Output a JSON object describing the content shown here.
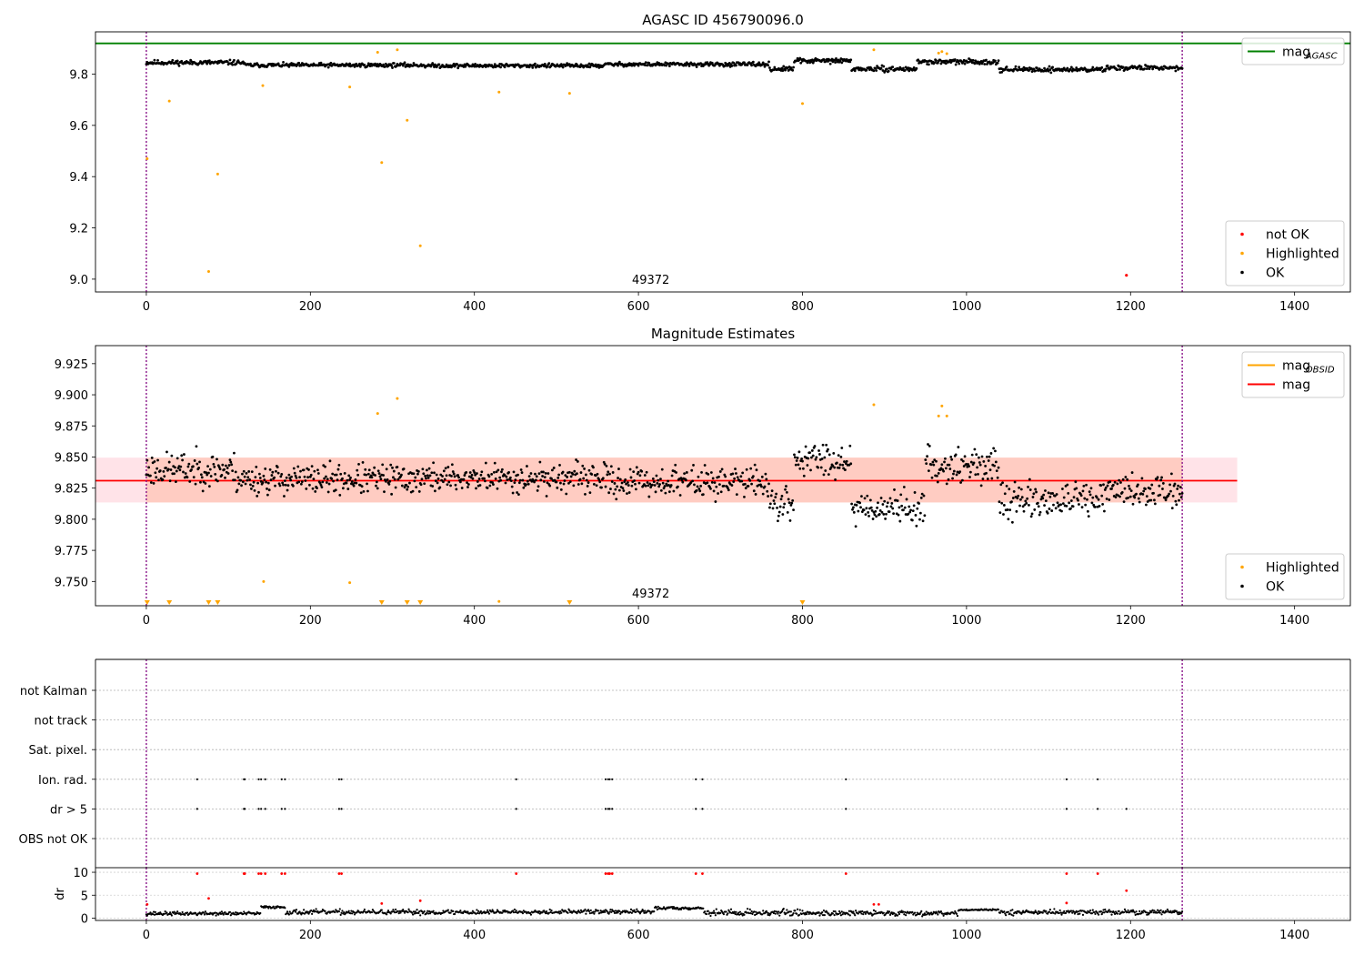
{
  "colors": {
    "ok": "#000000",
    "highlighted": "#ffa500",
    "not_ok": "#ff0000",
    "mag_agasc": "#008000",
    "mag_obsid": "#ffa500",
    "mag": "#ff0000",
    "band_outer": "#ffc0cb",
    "band_inner": "#ffa07a",
    "obs_line": "#800080"
  },
  "chart_data": [
    {
      "id": "agasc",
      "type": "scatter",
      "title": "AGASC ID 456790096.0",
      "annotation": "49372",
      "xlabel": "",
      "ylabel": "",
      "xlim": [
        -62,
        1468
      ],
      "ylim": [
        8.95,
        9.965
      ],
      "xticks": [
        0,
        200,
        400,
        600,
        800,
        1000,
        1200,
        1400
      ],
      "yticks": [
        9.0,
        9.2,
        9.4,
        9.6,
        9.8
      ],
      "ytick_labels": [
        "9.0",
        "9.2",
        "9.4",
        "9.6",
        "9.8"
      ],
      "obs_boundaries": [
        0,
        1263
      ],
      "hlines": [
        {
          "name": "mag_AGASC",
          "y": 9.92,
          "x0": -62,
          "x1": 1468,
          "color": "#008000"
        }
      ],
      "ok_series": {
        "name": "OK",
        "n": 1264,
        "range": [
          0,
          1263
        ],
        "segments": [
          {
            "x": [
              0,
              120
            ],
            "base": 9.845,
            "amp": 0.014
          },
          {
            "x": [
              120,
              340
            ],
            "base": 9.835,
            "amp": 0.012
          },
          {
            "x": [
              340,
              560
            ],
            "base": 9.833,
            "amp": 0.012
          },
          {
            "x": [
              560,
              760
            ],
            "base": 9.838,
            "amp": 0.012
          },
          {
            "x": [
              760,
              790
            ],
            "base": 9.82,
            "amp": 0.014
          },
          {
            "x": [
              790,
              860
            ],
            "base": 9.852,
            "amp": 0.014
          },
          {
            "x": [
              860,
              940
            ],
            "base": 9.82,
            "amp": 0.014
          },
          {
            "x": [
              940,
              1040
            ],
            "base": 9.848,
            "amp": 0.014
          },
          {
            "x": [
              1040,
              1170
            ],
            "base": 9.818,
            "amp": 0.014
          },
          {
            "x": [
              1170,
              1263
            ],
            "base": 9.825,
            "amp": 0.014
          }
        ]
      },
      "highlighted_points": [
        [
          1,
          9.47
        ],
        [
          28,
          9.695
        ],
        [
          76,
          9.03
        ],
        [
          87,
          9.41
        ],
        [
          142,
          9.755
        ],
        [
          248,
          9.75
        ],
        [
          282,
          9.885
        ],
        [
          287,
          9.455
        ],
        [
          306,
          9.895
        ],
        [
          318,
          9.62
        ],
        [
          334,
          9.13
        ],
        [
          430,
          9.73
        ],
        [
          516,
          9.725
        ],
        [
          800,
          9.685
        ],
        [
          887,
          9.895
        ],
        [
          966,
          9.882
        ],
        [
          970,
          9.888
        ],
        [
          976,
          9.88
        ]
      ],
      "not_ok_points": [
        [
          1195,
          9.015
        ]
      ],
      "legends": [
        {
          "position": "top-right",
          "entries": [
            {
              "label": "mag",
              "sub": "AGASC",
              "kind": "line",
              "color": "#008000"
            }
          ]
        },
        {
          "position": "bottom-right",
          "entries": [
            {
              "label": "not OK",
              "kind": "dot",
              "color": "#ff0000"
            },
            {
              "label": "Highlighted",
              "kind": "dot",
              "color": "#ffa500"
            },
            {
              "label": "OK",
              "kind": "dot",
              "color": "#000000"
            }
          ]
        }
      ]
    },
    {
      "id": "estimates",
      "type": "scatter",
      "title": "Magnitude Estimates",
      "annotation": "49372",
      "xlabel": "",
      "ylabel": "",
      "xlim": [
        -62,
        1468
      ],
      "ylim": [
        9.7305,
        9.9395
      ],
      "xticks": [
        0,
        200,
        400,
        600,
        800,
        1000,
        1200,
        1400
      ],
      "yticks": [
        9.75,
        9.775,
        9.8,
        9.825,
        9.85,
        9.875,
        9.9,
        9.925
      ],
      "ytick_labels": [
        "9.750",
        "9.775",
        "9.800",
        "9.825",
        "9.850",
        "9.875",
        "9.900",
        "9.925"
      ],
      "obs_boundaries": [
        0,
        1263
      ],
      "bands": [
        {
          "x": [
            -62,
            1330
          ],
          "y": [
            9.8135,
            9.8495
          ],
          "color": "#ffc0cb",
          "opacity": 0.45
        },
        {
          "x": [
            0,
            1263
          ],
          "y": [
            9.8135,
            9.8495
          ],
          "color": "#ffa07a",
          "opacity": 0.35
        }
      ],
      "hlines": [
        {
          "name": "mag",
          "y": 9.831,
          "x0": -62,
          "x1": 1330,
          "color": "#ff0000"
        }
      ],
      "ok_series": {
        "name": "OK",
        "n": 1264,
        "range": [
          0,
          1263
        ],
        "segments": [
          {
            "x": [
              0,
              110
            ],
            "base": 9.84,
            "amp": 0.02
          },
          {
            "x": [
              110,
              330
            ],
            "base": 9.832,
            "amp": 0.018
          },
          {
            "x": [
              330,
              560
            ],
            "base": 9.833,
            "amp": 0.017
          },
          {
            "x": [
              560,
              760
            ],
            "base": 9.83,
            "amp": 0.018
          },
          {
            "x": [
              760,
              790
            ],
            "base": 9.812,
            "amp": 0.02
          },
          {
            "x": [
              790,
              860
            ],
            "base": 9.848,
            "amp": 0.02
          },
          {
            "x": [
              860,
              950
            ],
            "base": 9.81,
            "amp": 0.02
          },
          {
            "x": [
              950,
              1040
            ],
            "base": 9.843,
            "amp": 0.02
          },
          {
            "x": [
              1040,
              1170
            ],
            "base": 9.815,
            "amp": 0.02
          },
          {
            "x": [
              1170,
              1263
            ],
            "base": 9.823,
            "amp": 0.02
          }
        ]
      },
      "highlighted_points": [
        [
          143,
          9.75
        ],
        [
          248,
          9.749
        ],
        [
          282,
          9.885
        ],
        [
          306,
          9.897
        ],
        [
          430,
          9.734
        ],
        [
          887,
          9.892
        ],
        [
          966,
          9.883
        ],
        [
          970,
          9.891
        ],
        [
          976,
          9.883
        ]
      ],
      "highlighted_offscale_x": [
        1,
        28,
        76,
        87,
        287,
        318,
        334,
        516,
        800
      ],
      "legends": [
        {
          "position": "top-right",
          "entries": [
            {
              "label": "mag",
              "sub": "OBSID",
              "kind": "line",
              "color": "#ffa500"
            },
            {
              "label": "mag",
              "sub": "",
              "kind": "line",
              "color": "#ff0000"
            }
          ]
        },
        {
          "position": "bottom-right",
          "entries": [
            {
              "label": "Highlighted",
              "kind": "dot",
              "color": "#ffa500"
            },
            {
              "label": "OK",
              "kind": "dot",
              "color": "#000000"
            }
          ]
        }
      ]
    },
    {
      "id": "flags",
      "type": "scatter",
      "title": "",
      "xlabel": "",
      "ylabel": "",
      "xlim": [
        -62,
        1468
      ],
      "categories": [
        "not Kalman",
        "not track",
        "Sat. pixel.",
        "Ion. rad.",
        "dr > 5",
        "OBS not OK"
      ],
      "obs_boundaries": [
        0,
        1263
      ],
      "flags": {
        "Ion. rad.": [
          62,
          119,
          120,
          137,
          140,
          145,
          165,
          169,
          235,
          238,
          451,
          560,
          563,
          565,
          568,
          670,
          678,
          853,
          1122,
          1160
        ],
        "dr > 5": [
          62,
          119,
          120,
          137,
          140,
          145,
          165,
          169,
          235,
          238,
          451,
          560,
          563,
          565,
          568,
          670,
          678,
          853,
          1122,
          1160,
          1195
        ]
      }
    },
    {
      "id": "dr",
      "type": "scatter",
      "title": "",
      "xlabel": "",
      "ylabel": "dr",
      "xlim": [
        -62,
        1468
      ],
      "ylim": [
        -0.5,
        11
      ],
      "xticks": [
        0,
        200,
        400,
        600,
        800,
        1000,
        1200,
        1400
      ],
      "yticks": [
        0,
        5,
        10
      ],
      "ytick_labels": [
        "0",
        "5",
        "10"
      ],
      "obs_boundaries": [
        0,
        1263
      ],
      "ok_series": {
        "name": "OK",
        "n": 1264,
        "range": [
          0,
          1263
        ],
        "segments": [
          {
            "x": [
              0,
              140
            ],
            "base": 1.0,
            "amp": 0.6
          },
          {
            "x": [
              140,
              170
            ],
            "base": 2.4,
            "amp": 0.4
          },
          {
            "x": [
              170,
              420
            ],
            "base": 1.3,
            "amp": 0.8
          },
          {
            "x": [
              420,
              620
            ],
            "base": 1.4,
            "amp": 0.7
          },
          {
            "x": [
              620,
              680
            ],
            "base": 2.2,
            "amp": 0.5
          },
          {
            "x": [
              680,
              800
            ],
            "base": 1.2,
            "amp": 1.0
          },
          {
            "x": [
              800,
              990
            ],
            "base": 1.1,
            "amp": 0.8
          },
          {
            "x": [
              990,
              1040
            ],
            "base": 1.8,
            "amp": 0.3
          },
          {
            "x": [
              1040,
              1263
            ],
            "base": 1.3,
            "amp": 0.8
          }
        ]
      },
      "not_ok_points": [
        [
          62,
          9.7
        ],
        [
          119,
          9.7
        ],
        [
          120,
          9.7
        ],
        [
          137,
          9.7
        ],
        [
          140,
          9.7
        ],
        [
          145,
          9.7
        ],
        [
          165,
          9.7
        ],
        [
          169,
          9.7
        ],
        [
          235,
          9.7
        ],
        [
          238,
          9.7
        ],
        [
          451,
          9.7
        ],
        [
          560,
          9.7
        ],
        [
          563,
          9.7
        ],
        [
          565,
          9.7
        ],
        [
          568,
          9.7
        ],
        [
          670,
          9.7
        ],
        [
          678,
          9.7
        ],
        [
          853,
          9.7
        ],
        [
          1122,
          9.7
        ],
        [
          1160,
          9.7
        ],
        [
          1195,
          6.0
        ],
        [
          1,
          3.0
        ],
        [
          76,
          4.3
        ],
        [
          287,
          3.2
        ],
        [
          334,
          3.8
        ],
        [
          887,
          3.0
        ],
        [
          893,
          3.0
        ],
        [
          1122,
          3.3
        ]
      ]
    }
  ]
}
